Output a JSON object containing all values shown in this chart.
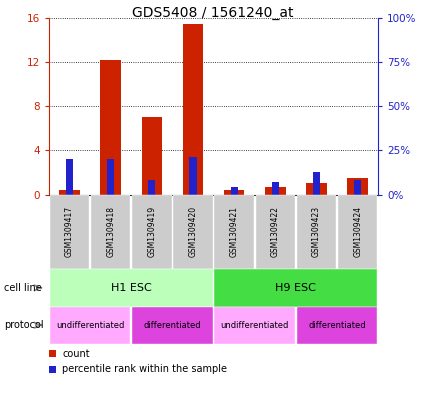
{
  "title": "GDS5408 / 1561240_at",
  "samples": [
    "GSM1309417",
    "GSM1309418",
    "GSM1309419",
    "GSM1309420",
    "GSM1309421",
    "GSM1309422",
    "GSM1309423",
    "GSM1309424"
  ],
  "count_values": [
    0.4,
    12.2,
    7.0,
    15.4,
    0.4,
    0.7,
    1.0,
    1.5
  ],
  "percentile_values": [
    20,
    20,
    8,
    21,
    4,
    7,
    13,
    8
  ],
  "ylim_left": [
    0,
    16
  ],
  "ylim_right": [
    0,
    100
  ],
  "yticks_left": [
    0,
    4,
    8,
    12,
    16
  ],
  "yticks_right": [
    0,
    25,
    50,
    75,
    100
  ],
  "ytick_labels_left": [
    "0",
    "4",
    "8",
    "12",
    "16"
  ],
  "ytick_labels_right": [
    "0%",
    "25%",
    "50%",
    "75%",
    "100%"
  ],
  "bar_width": 0.5,
  "count_color": "#cc2200",
  "percentile_color": "#2222cc",
  "cell_line_groups": [
    {
      "label": "H1 ESC",
      "start": 0,
      "end": 4,
      "color": "#bbffbb"
    },
    {
      "label": "H9 ESC",
      "start": 4,
      "end": 8,
      "color": "#44dd44"
    }
  ],
  "protocol_groups": [
    {
      "label": "undifferentiated",
      "start": 0,
      "end": 2,
      "color": "#ffaaff"
    },
    {
      "label": "differentiated",
      "start": 2,
      "end": 4,
      "color": "#dd44dd"
    },
    {
      "label": "undifferentiated",
      "start": 4,
      "end": 6,
      "color": "#ffaaff"
    },
    {
      "label": "differentiated",
      "start": 6,
      "end": 8,
      "color": "#dd44dd"
    }
  ],
  "cell_line_label": "cell line",
  "protocol_label": "protocol",
  "legend_count": "count",
  "legend_percentile": "percentile rank within the sample",
  "sample_bg_color": "#cccccc",
  "title_fontsize": 10,
  "axis_color_left": "#cc2200",
  "axis_color_right": "#2222cc",
  "fig_width": 4.25,
  "fig_height": 3.93,
  "dpi": 100
}
